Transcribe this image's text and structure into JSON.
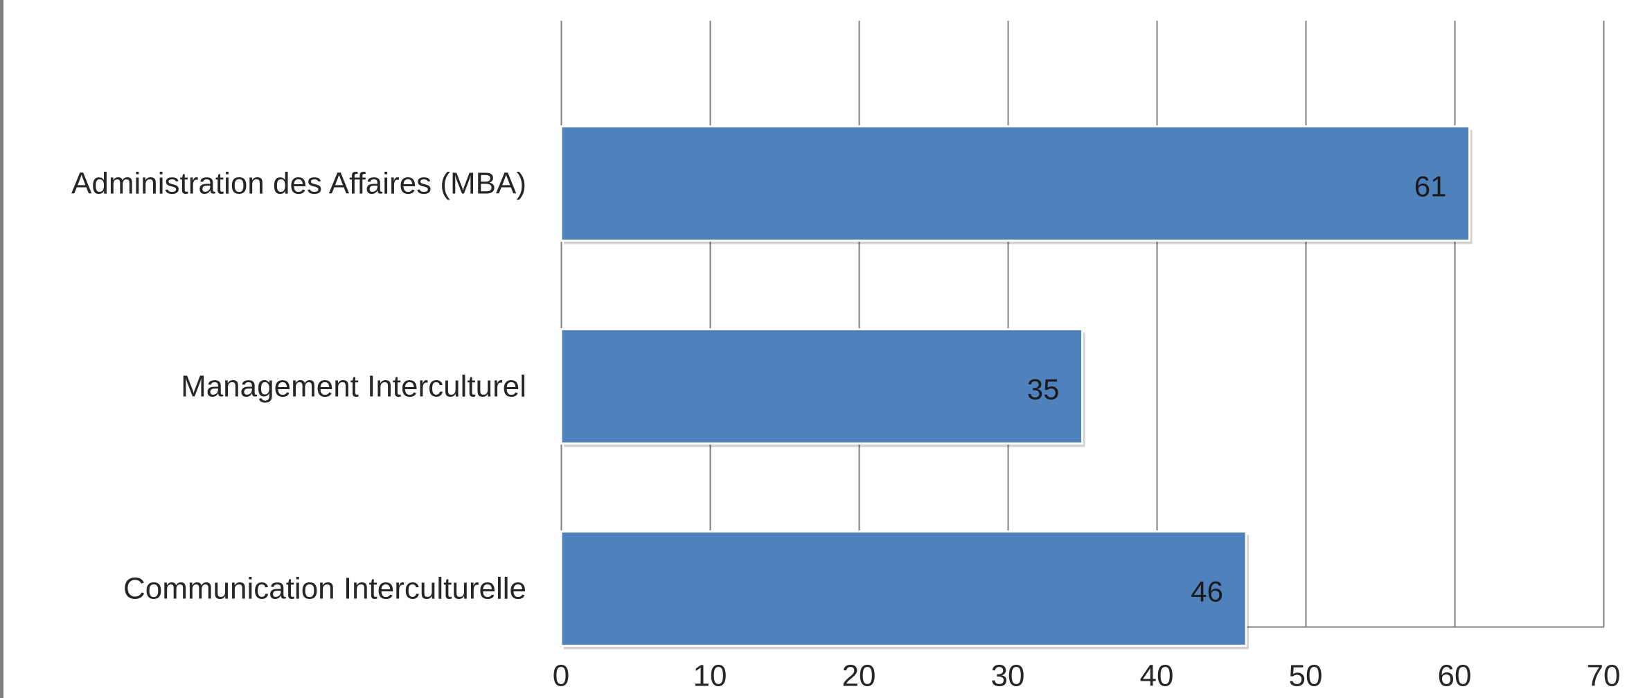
{
  "chart_data": {
    "type": "bar",
    "orientation": "horizontal",
    "categories": [
      "Administration des Affaires (MBA)",
      "Management Interculturel",
      "Communication Interculturelle"
    ],
    "values": [
      61,
      35,
      46
    ],
    "data_labels": [
      "61",
      "35",
      "46"
    ],
    "x_ticks": [
      "0",
      "10",
      "20",
      "30",
      "40",
      "50",
      "60",
      "70"
    ],
    "tick_values": [
      0,
      10,
      20,
      30,
      40,
      50,
      60,
      70
    ],
    "xlim": [
      0,
      70
    ],
    "grid": true,
    "legend": "none",
    "bar_color": "#4F81BD",
    "grid_color": "#7F7F7F",
    "frame_color": "#7F7F7F"
  }
}
